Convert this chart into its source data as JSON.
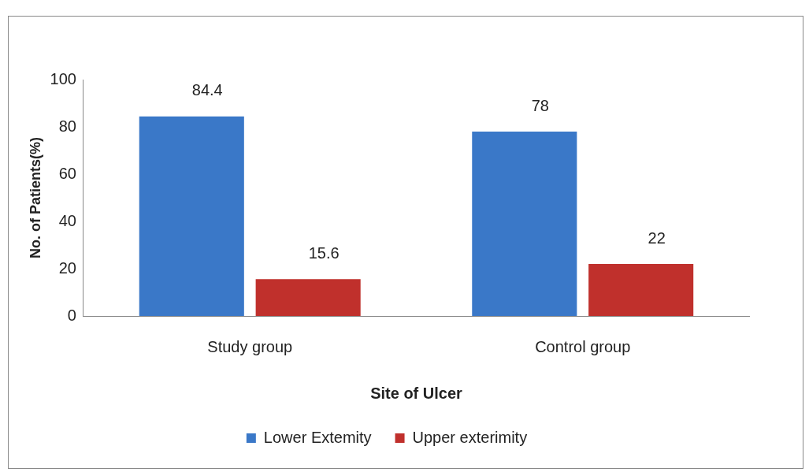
{
  "chart_data": {
    "type": "bar",
    "xlabel": "Site of Ulcer",
    "ylabel": "No. of Patients(%)",
    "categories": [
      "Study group",
      "Control group"
    ],
    "series": [
      {
        "name": "Lower Extemity",
        "color": "#3a78c8",
        "values": [
          84.4,
          78
        ]
      },
      {
        "name": "Upper exterimity",
        "color": "#c0302c",
        "values": [
          15.6,
          22
        ]
      }
    ],
    "ylim": [
      0,
      100
    ],
    "yticks": [
      0,
      20,
      40,
      60,
      80,
      100
    ],
    "grid": false,
    "legend": "bottom",
    "data_labels": true
  }
}
